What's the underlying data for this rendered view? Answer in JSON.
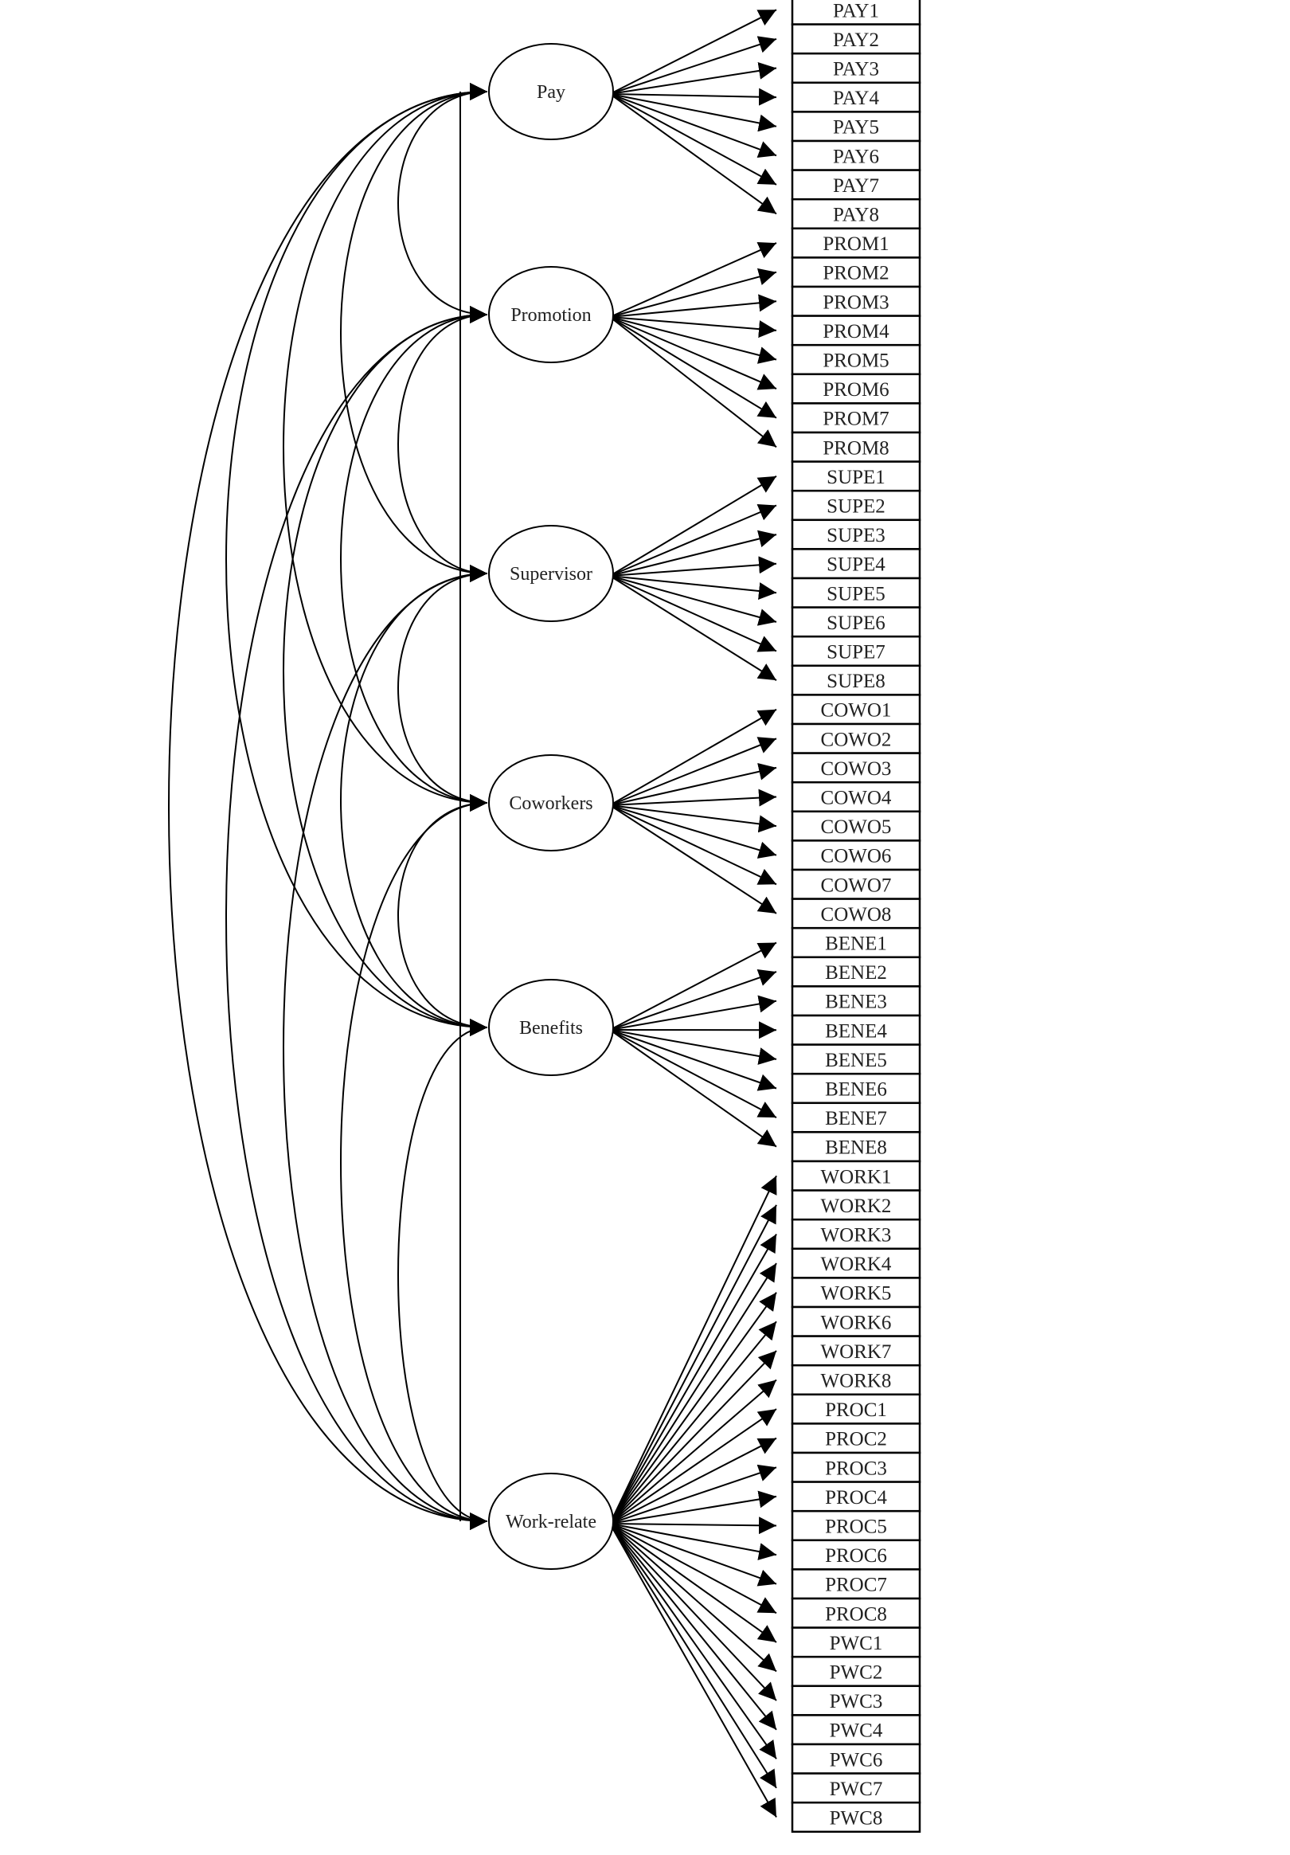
{
  "diagram": {
    "latents": [
      {
        "label": "Pay",
        "indicators": [
          "PAY1",
          "PAY2",
          "PAY3",
          "PAY4",
          "PAY5",
          "PAY6",
          "PAY7",
          "PAY8"
        ]
      },
      {
        "label": "Promotion",
        "indicators": [
          "PROM1",
          "PROM2",
          "PROM3",
          "PROM4",
          "PROM5",
          "PROM6",
          "PROM7",
          "PROM8"
        ]
      },
      {
        "label": "Supervisor",
        "indicators": [
          "SUPE1",
          "SUPE2",
          "SUPE3",
          "SUPE4",
          "SUPE5",
          "SUPE6",
          "SUPE7",
          "SUPE8"
        ]
      },
      {
        "label": "Coworkers",
        "indicators": [
          "COWO1",
          "COWO2",
          "COWO3",
          "COWO4",
          "COWO5",
          "COWO6",
          "COWO7",
          "COWO8"
        ]
      },
      {
        "label": "Benefits",
        "indicators": [
          "BENE1",
          "BENE2",
          "BENE3",
          "BENE4",
          "BENE5",
          "BENE6",
          "BENE7",
          "BENE8"
        ]
      },
      {
        "label": "Work-relate",
        "indicators": [
          "WORK1",
          "WORK2",
          "WORK3",
          "WORK4",
          "WORK5",
          "WORK6",
          "WORK7",
          "WORK8",
          "PROC1",
          "PROC2",
          "PROC3",
          "PROC4",
          "PROC5",
          "PROC6",
          "PROC7",
          "PROC8",
          "PWC1",
          "PWC2",
          "PWC3",
          "PWC4",
          "PWC6",
          "PWC7",
          "PWC8"
        ]
      }
    ],
    "covariances": "all-pairs",
    "line_color": "#000000"
  }
}
